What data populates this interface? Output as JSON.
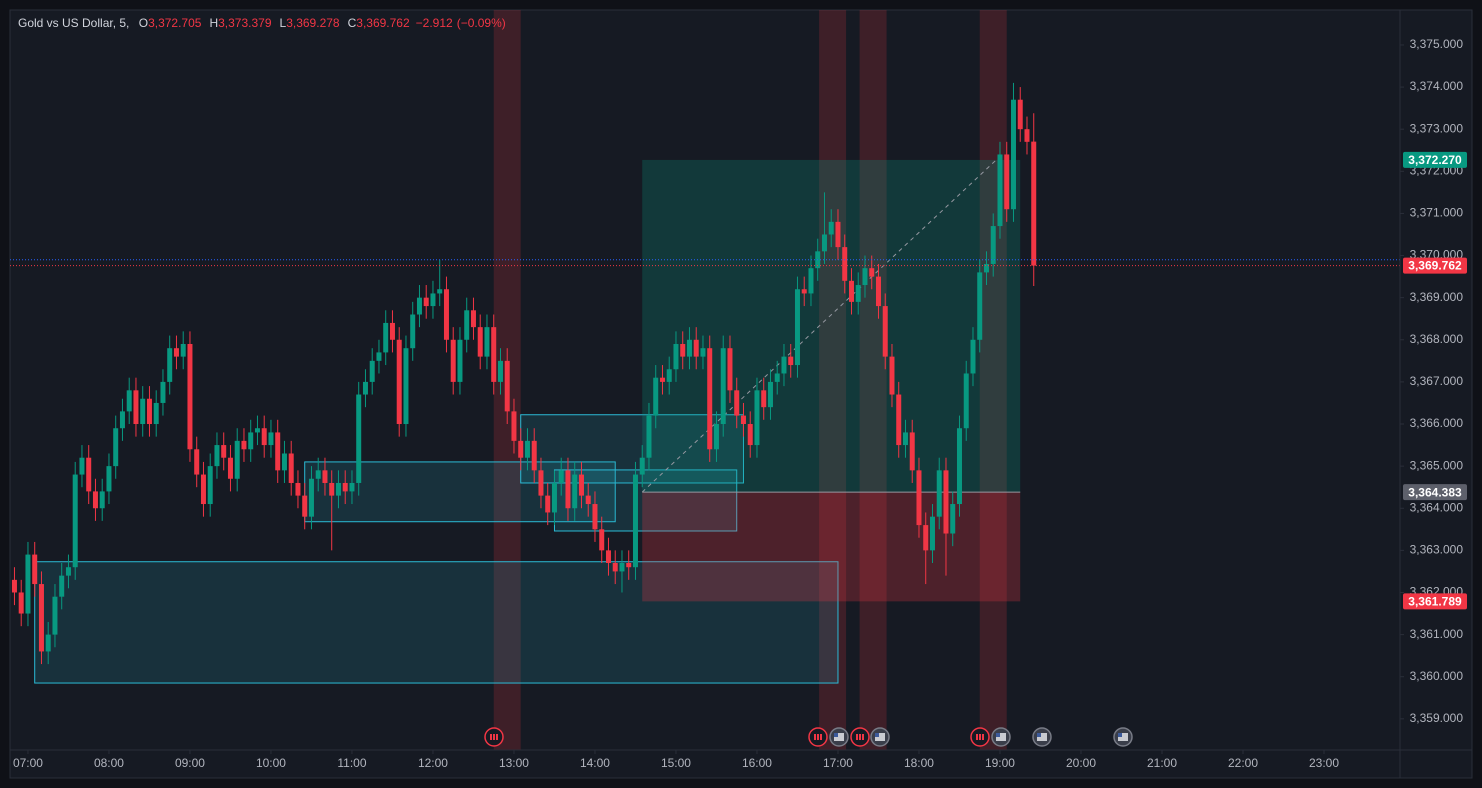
{
  "chart_data": {
    "type": "candlestick",
    "title": "Gold vs US Dollar, 5,",
    "ohlc": [
      {
        "prefix": "O",
        "value": 3372.705,
        "label": "3,372.705"
      },
      {
        "prefix": "H",
        "value": 3373.379,
        "label": "3,373.379"
      },
      {
        "prefix": "L",
        "value": 3369.278,
        "label": "3,369.278"
      },
      {
        "prefix": "C",
        "value": 3369.762,
        "label": "3,369.762"
      }
    ],
    "change": {
      "value": -2.912,
      "label": "−2.912"
    },
    "change_pct": {
      "value": -0.09,
      "label": "(−0.09%)"
    },
    "up_color": "#089981",
    "down_color": "#f23645",
    "x": [
      410,
      415,
      420,
      425,
      430,
      435,
      440,
      445,
      450,
      455,
      460,
      465,
      470,
      475,
      480,
      485,
      490,
      495,
      500,
      505,
      510,
      515,
      520,
      525,
      530,
      535,
      540,
      545,
      550,
      555,
      560,
      565,
      570,
      575,
      580,
      585,
      590,
      595,
      600,
      605,
      610,
      615,
      620,
      625,
      630,
      635,
      640,
      645,
      650,
      655,
      660,
      665,
      670,
      675,
      680,
      685,
      690,
      695,
      700,
      705,
      710,
      715,
      720,
      725,
      730,
      735,
      740,
      745,
      750,
      755,
      760,
      765,
      770,
      775,
      780,
      785,
      790,
      795,
      800,
      805,
      810,
      815,
      820,
      825,
      830,
      835,
      840,
      845,
      850,
      855,
      860,
      865,
      870,
      875,
      880,
      885,
      890,
      895,
      900,
      905,
      910,
      915,
      920,
      925,
      930,
      935,
      940,
      945,
      950,
      955,
      960,
      965,
      970,
      975,
      980,
      985,
      990,
      995,
      1000,
      1005,
      1010,
      1015,
      1020,
      1025,
      1030,
      1035,
      1040,
      1045,
      1050,
      1055,
      1060,
      1065,
      1070,
      1075,
      1080,
      1085,
      1090,
      1095,
      1100,
      1105,
      1110,
      1115,
      1120,
      1125,
      1130,
      1135,
      1140,
      1145,
      1150,
      1155,
      1160,
      1165
    ],
    "open": [
      3362.3,
      3362.0,
      3361.5,
      3362.9,
      3362.2,
      3360.6,
      3361.0,
      3361.9,
      3362.4,
      3362.6,
      3364.8,
      3365.2,
      3364.4,
      3364.0,
      3364.4,
      3365.0,
      3365.9,
      3366.3,
      3366.8,
      3366.0,
      3366.6,
      3366.0,
      3366.5,
      3367.0,
      3367.8,
      3367.6,
      3367.9,
      3365.4,
      3364.8,
      3364.1,
      3365.0,
      3365.5,
      3365.2,
      3364.7,
      3365.6,
      3365.4,
      3365.8,
      3365.9,
      3365.5,
      3365.8,
      3364.9,
      3365.3,
      3364.6,
      3364.3,
      3363.8,
      3364.7,
      3364.9,
      3364.6,
      3364.3,
      3364.6,
      3364.4,
      3364.6,
      3366.7,
      3367.0,
      3367.5,
      3367.7,
      3368.4,
      3368.0,
      3366.0,
      3367.8,
      3368.6,
      3369.0,
      3368.8,
      3369.1,
      3369.2,
      3368.0,
      3367.0,
      3368.0,
      3368.7,
      3368.3,
      3367.6,
      3368.3,
      3367.0,
      3367.5,
      3366.3,
      3365.6,
      3365.2,
      3365.6,
      3364.9,
      3364.3,
      3363.9,
      3364.6,
      3364.9,
      3364.0,
      3364.8,
      3364.3,
      3364.1,
      3363.5,
      3363.0,
      3362.7,
      3362.5,
      3362.7,
      3362.6,
      3364.8,
      3365.2,
      3366.2,
      3367.1,
      3367.0,
      3367.3,
      3367.9,
      3367.6,
      3368.0,
      3367.6,
      3367.8,
      3365.4,
      3366.0,
      3367.8,
      3366.8,
      3366.2,
      3366.0,
      3365.5,
      3366.8,
      3366.4,
      3367.0,
      3367.2,
      3367.6,
      3367.4,
      3369.2,
      3369.1,
      3369.7,
      3370.1,
      3370.5,
      3370.8,
      3370.2,
      3369.4,
      3368.9,
      3369.3,
      3369.7,
      3369.5,
      3368.8,
      3367.6,
      3366.7,
      3365.5,
      3365.8,
      3364.9,
      3363.6,
      3363.0,
      3363.8,
      3364.9,
      3363.4,
      3364.1,
      3365.9,
      3367.2,
      3368.0,
      3369.6,
      3369.8,
      3370.7,
      3372.4,
      3371.1,
      3373.7,
      3373.0,
      3372.705
    ],
    "high": [
      3362.6,
      3362.3,
      3363.2,
      3363.2,
      3362.5,
      3361.3,
      3362.2,
      3362.7,
      3362.9,
      3365.1,
      3365.5,
      3365.5,
      3364.7,
      3364.7,
      3365.3,
      3366.2,
      3366.6,
      3367.1,
      3367.1,
      3366.9,
      3366.9,
      3366.8,
      3367.3,
      3368.1,
      3368.1,
      3368.2,
      3368.2,
      3365.7,
      3365.1,
      3365.3,
      3365.8,
      3365.8,
      3365.5,
      3365.9,
      3365.9,
      3366.1,
      3366.2,
      3366.2,
      3366.1,
      3366.1,
      3365.6,
      3365.6,
      3364.9,
      3364.6,
      3365.0,
      3365.2,
      3365.2,
      3364.9,
      3364.9,
      3364.9,
      3364.9,
      3367.0,
      3367.3,
      3367.8,
      3368.0,
      3368.7,
      3368.7,
      3368.3,
      3368.1,
      3368.9,
      3369.3,
      3369.3,
      3369.4,
      3369.9,
      3369.5,
      3368.3,
      3368.3,
      3369.0,
      3369.0,
      3368.6,
      3368.6,
      3368.6,
      3367.8,
      3367.8,
      3366.6,
      3365.9,
      3365.9,
      3365.9,
      3365.2,
      3364.6,
      3364.9,
      3365.2,
      3365.2,
      3365.1,
      3365.1,
      3364.6,
      3364.4,
      3363.8,
      3363.3,
      3363.0,
      3363.0,
      3363.0,
      3365.1,
      3365.5,
      3366.5,
      3367.4,
      3367.4,
      3367.6,
      3368.2,
      3368.2,
      3368.3,
      3368.3,
      3368.1,
      3368.1,
      3366.3,
      3368.1,
      3368.1,
      3367.1,
      3366.5,
      3366.3,
      3367.1,
      3367.1,
      3367.3,
      3367.5,
      3367.9,
      3367.9,
      3369.5,
      3369.5,
      3370.0,
      3370.4,
      3371.5,
      3371.1,
      3371.1,
      3370.5,
      3369.7,
      3369.6,
      3370.0,
      3370.0,
      3369.8,
      3369.1,
      3367.9,
      3367.0,
      3366.1,
      3366.1,
      3365.2,
      3363.9,
      3364.1,
      3365.2,
      3365.2,
      3364.4,
      3366.2,
      3367.5,
      3368.3,
      3369.9,
      3370.1,
      3371.0,
      3372.7,
      3372.7,
      3374.1,
      3374.0,
      3373.3,
      3373.379
    ],
    "low": [
      3361.7,
      3361.2,
      3361.2,
      3361.9,
      3360.3,
      3360.3,
      3360.7,
      3361.6,
      3362.1,
      3362.3,
      3364.5,
      3364.1,
      3363.7,
      3363.7,
      3364.1,
      3364.7,
      3365.6,
      3366.0,
      3365.7,
      3365.7,
      3365.7,
      3365.7,
      3366.2,
      3366.7,
      3367.3,
      3367.3,
      3365.1,
      3364.5,
      3363.8,
      3363.8,
      3364.7,
      3364.9,
      3364.4,
      3364.4,
      3365.1,
      3365.1,
      3365.5,
      3365.2,
      3365.2,
      3364.6,
      3364.6,
      3364.3,
      3364.0,
      3363.5,
      3363.5,
      3364.4,
      3364.3,
      3363.0,
      3364.0,
      3364.1,
      3364.1,
      3364.3,
      3366.4,
      3366.7,
      3367.2,
      3367.4,
      3367.7,
      3365.7,
      3365.7,
      3367.5,
      3368.3,
      3368.5,
      3368.5,
      3368.8,
      3367.7,
      3366.7,
      3366.7,
      3367.7,
      3368.0,
      3367.3,
      3367.3,
      3366.7,
      3366.7,
      3366.0,
      3365.3,
      3364.9,
      3364.9,
      3364.6,
      3364.0,
      3363.6,
      3363.6,
      3364.3,
      3363.7,
      3363.7,
      3364.0,
      3363.8,
      3363.2,
      3362.7,
      3362.4,
      3362.2,
      3362.0,
      3362.3,
      3362.3,
      3364.5,
      3364.9,
      3365.9,
      3366.7,
      3366.7,
      3367.0,
      3367.3,
      3367.3,
      3367.3,
      3367.3,
      3365.1,
      3365.1,
      3365.7,
      3366.5,
      3365.9,
      3365.7,
      3365.2,
      3365.2,
      3366.1,
      3366.1,
      3366.7,
      3366.9,
      3367.1,
      3367.1,
      3368.8,
      3368.8,
      3369.4,
      3369.8,
      3370.2,
      3369.9,
      3369.1,
      3368.6,
      3368.6,
      3369.0,
      3369.2,
      3368.5,
      3367.3,
      3366.4,
      3365.2,
      3365.2,
      3364.6,
      3363.3,
      3362.2,
      3362.7,
      3363.5,
      3362.4,
      3363.1,
      3363.8,
      3365.6,
      3366.9,
      3367.7,
      3369.3,
      3369.5,
      3370.4,
      3370.8,
      3370.8,
      3372.7,
      3372.4,
      3369.278
    ],
    "close": [
      3362.0,
      3361.5,
      3362.9,
      3362.2,
      3360.6,
      3361.0,
      3361.9,
      3362.4,
      3362.6,
      3364.8,
      3365.2,
      3364.4,
      3364.0,
      3364.4,
      3365.0,
      3365.9,
      3366.3,
      3366.8,
      3366.0,
      3366.6,
      3366.0,
      3366.5,
      3367.0,
      3367.8,
      3367.6,
      3367.9,
      3365.4,
      3364.8,
      3364.1,
      3365.0,
      3365.5,
      3365.2,
      3364.7,
      3365.6,
      3365.4,
      3365.8,
      3365.9,
      3365.5,
      3365.8,
      3364.9,
      3365.3,
      3364.6,
      3364.3,
      3363.8,
      3364.7,
      3364.9,
      3364.6,
      3364.3,
      3364.6,
      3364.4,
      3364.6,
      3366.7,
      3367.0,
      3367.5,
      3367.7,
      3368.4,
      3368.0,
      3366.0,
      3367.8,
      3368.6,
      3369.0,
      3368.8,
      3369.1,
      3369.2,
      3368.0,
      3367.0,
      3368.0,
      3368.7,
      3368.3,
      3367.6,
      3368.3,
      3367.0,
      3367.5,
      3366.3,
      3365.6,
      3365.2,
      3365.6,
      3364.9,
      3364.3,
      3363.9,
      3364.6,
      3364.9,
      3364.0,
      3364.8,
      3364.3,
      3364.1,
      3363.5,
      3363.0,
      3362.7,
      3362.5,
      3362.7,
      3362.6,
      3364.8,
      3365.2,
      3366.2,
      3367.1,
      3367.0,
      3367.3,
      3367.9,
      3367.6,
      3368.0,
      3367.6,
      3367.8,
      3365.4,
      3366.0,
      3367.8,
      3366.8,
      3366.2,
      3366.0,
      3365.5,
      3366.8,
      3366.4,
      3367.0,
      3367.2,
      3367.6,
      3367.4,
      3369.2,
      3369.1,
      3369.7,
      3370.1,
      3370.5,
      3370.8,
      3370.2,
      3369.4,
      3368.9,
      3369.3,
      3369.7,
      3369.5,
      3368.8,
      3367.6,
      3366.7,
      3365.5,
      3365.8,
      3364.9,
      3363.6,
      3363.0,
      3363.8,
      3364.9,
      3363.4,
      3364.1,
      3365.9,
      3367.2,
      3368.0,
      3369.6,
      3369.8,
      3370.7,
      3372.4,
      3371.1,
      3373.7,
      3373.0,
      3372.7,
      3369.762
    ],
    "xlim": [
      406.7,
      1436.3
    ],
    "ylim": [
      3358.26,
      3375.83
    ],
    "xticks": [
      {
        "value": 420,
        "label": "07:00"
      },
      {
        "value": 480,
        "label": "08:00"
      },
      {
        "value": 540,
        "label": "09:00"
      },
      {
        "value": 600,
        "label": "10:00"
      },
      {
        "value": 660,
        "label": "11:00"
      },
      {
        "value": 720,
        "label": "12:00"
      },
      {
        "value": 780,
        "label": "13:00"
      },
      {
        "value": 840,
        "label": "14:00"
      },
      {
        "value": 900,
        "label": "15:00"
      },
      {
        "value": 960,
        "label": "16:00"
      },
      {
        "value": 1020,
        "label": "17:00"
      },
      {
        "value": 1080,
        "label": "18:00"
      },
      {
        "value": 1140,
        "label": "19:00"
      },
      {
        "value": 1200,
        "label": "20:00"
      },
      {
        "value": 1260,
        "label": "21:00"
      },
      {
        "value": 1320,
        "label": "22:00"
      },
      {
        "value": 1380,
        "label": "23:00"
      }
    ],
    "yticks": [
      {
        "value": 3359,
        "label": "3,359.000"
      },
      {
        "value": 3360,
        "label": "3,360.000"
      },
      {
        "value": 3361,
        "label": "3,361.000"
      },
      {
        "value": 3362,
        "label": "3,362.000"
      },
      {
        "value": 3363,
        "label": "3,363.000"
      },
      {
        "value": 3364,
        "label": "3,364.000"
      },
      {
        "value": 3365,
        "label": "3,365.000"
      },
      {
        "value": 3366,
        "label": "3,366.000"
      },
      {
        "value": 3367,
        "label": "3,367.000"
      },
      {
        "value": 3368,
        "label": "3,368.000"
      },
      {
        "value": 3369,
        "label": "3,369.000"
      },
      {
        "value": 3370,
        "label": "3,370.000"
      },
      {
        "value": 3371,
        "label": "3,371.000"
      },
      {
        "value": 3372,
        "label": "3,372.000"
      },
      {
        "value": 3373,
        "label": "3,373.000"
      },
      {
        "value": 3374,
        "label": "3,374.000"
      },
      {
        "value": 3375,
        "label": "3,375.000"
      }
    ],
    "zones": [
      {
        "start": 425,
        "end": 1020,
        "top": 3362.73,
        "bottom": 3359.85
      },
      {
        "start": 625,
        "end": 855,
        "top": 3365.1,
        "bottom": 3363.68
      },
      {
        "start": 785,
        "end": 950,
        "top": 3366.22,
        "bottom": 3364.6
      },
      {
        "start": 810,
        "end": 945,
        "top": 3364.91,
        "bottom": 3363.46
      }
    ],
    "event_bands": [
      {
        "start": 765,
        "end": 785
      },
      {
        "start": 1006,
        "end": 1026
      },
      {
        "start": 1036,
        "end": 1056
      },
      {
        "start": 1125,
        "end": 1145
      }
    ],
    "position": {
      "start": 875,
      "end": 1155,
      "entry": {
        "value": 3364.383,
        "label": "3,364.383",
        "color": "#5d606b"
      },
      "target": {
        "value": 3372.27,
        "label": "3,372.270",
        "color": "#089981"
      },
      "stop": {
        "value": 3361.789,
        "label": "3,361.789",
        "color": "#f23645"
      }
    },
    "last_price": {
      "value": 3369.762,
      "label": "3,369.762",
      "color": "#f23645"
    },
    "bid_line": {
      "value": 3369.9,
      "color": "#2962ff"
    }
  }
}
